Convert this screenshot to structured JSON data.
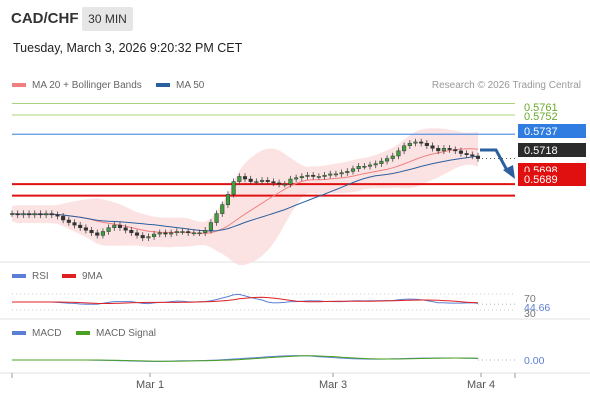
{
  "header": {
    "symbol": "CAD/CHF",
    "timeframe": "30 MIN",
    "timestamp": "Tuesday, March 3, 2026 9:20:32 PM CET",
    "copyright": "Research © 2026 Trading Central"
  },
  "legend_main": [
    {
      "label": "MA 20 + Bollinger Bands",
      "color": "#f08080"
    },
    {
      "label": "MA 50",
      "color": "#2c5f9e"
    }
  ],
  "legend_rsi": [
    {
      "label": "RSI",
      "color": "#5b7fd6"
    },
    {
      "label": "9MA",
      "color": "#e02020"
    }
  ],
  "legend_macd": [
    {
      "label": "MACD",
      "color": "#5b7fd6"
    },
    {
      "label": "MACD Signal",
      "color": "#4aa020"
    }
  ],
  "price_labels": [
    {
      "text": "0.5761",
      "color": "#6aaa2a",
      "boxed": false
    },
    {
      "text": "0.5752",
      "color": "#6aaa2a",
      "boxed": false
    },
    {
      "text": "0.5737",
      "color": "#2f7de0",
      "boxed": true
    },
    {
      "text": "0.5718",
      "color": "#2b2b2b",
      "boxed": true
    },
    {
      "text": "0.5698",
      "color": "#e01010",
      "boxed": true
    },
    {
      "text": "0.5689",
      "color": "#e01010",
      "boxed": true
    }
  ],
  "rsi_labels": [
    "70",
    "44.66",
    "30"
  ],
  "macd_labels": [
    "0.00"
  ],
  "x_labels": [
    "Mar 1",
    "Mar 3",
    "Mar 4"
  ],
  "chart_data": {
    "type": "candlestick",
    "symbol": "CAD/CHF",
    "interval": "30 MIN",
    "y_range": [
      0.5645,
      0.577
    ],
    "current_price": 0.5718,
    "levels": {
      "resistance": [
        0.5761,
        0.5752
      ],
      "pivot": 0.5737,
      "support": [
        0.5698,
        0.5689
      ]
    },
    "close": [
      0.5675,
      0.5674,
      0.5675,
      0.5674,
      0.5675,
      0.5674,
      0.5675,
      0.5674,
      0.5673,
      0.567,
      0.5668,
      0.5666,
      0.5664,
      0.5662,
      0.566,
      0.5658,
      0.5661,
      0.5664,
      0.5666,
      0.5664,
      0.5662,
      0.566,
      0.5658,
      0.5656,
      0.5657,
      0.5659,
      0.566,
      0.5659,
      0.566,
      0.5661,
      0.5661,
      0.566,
      0.566,
      0.566,
      0.5662,
      0.5668,
      0.5675,
      0.5682,
      0.569,
      0.57,
      0.5704,
      0.5702,
      0.57,
      0.57,
      0.5701,
      0.57,
      0.5699,
      0.5698,
      0.5698,
      0.5702,
      0.5703,
      0.5704,
      0.5705,
      0.5704,
      0.5704,
      0.5705,
      0.5706,
      0.5706,
      0.5707,
      0.5708,
      0.571,
      0.5712,
      0.5712,
      0.5713,
      0.5714,
      0.5716,
      0.5718,
      0.572,
      0.5724,
      0.5728,
      0.573,
      0.5731,
      0.573,
      0.5728,
      0.5726,
      0.5724,
      0.5726,
      0.5725,
      0.5724,
      0.5722,
      0.5721,
      0.572,
      0.5718
    ],
    "rsi": {
      "value": 44.66,
      "levels": [
        70,
        30
      ]
    },
    "macd": {
      "zero_line": 0.0
    }
  }
}
